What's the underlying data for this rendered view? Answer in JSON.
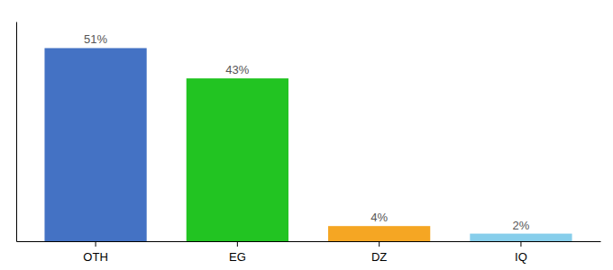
{
  "chart_data": {
    "type": "bar",
    "categories": [
      "OTH",
      "EG",
      "DZ",
      "IQ"
    ],
    "values": [
      51,
      43,
      4,
      2
    ],
    "value_labels": [
      "51%",
      "43%",
      "4%",
      "2%"
    ],
    "colors": [
      "#4472c4",
      "#22c422",
      "#f5a623",
      "#87ceeb"
    ],
    "ylim": [
      0,
      58
    ],
    "data_labels": true,
    "tick_labels": "x"
  }
}
